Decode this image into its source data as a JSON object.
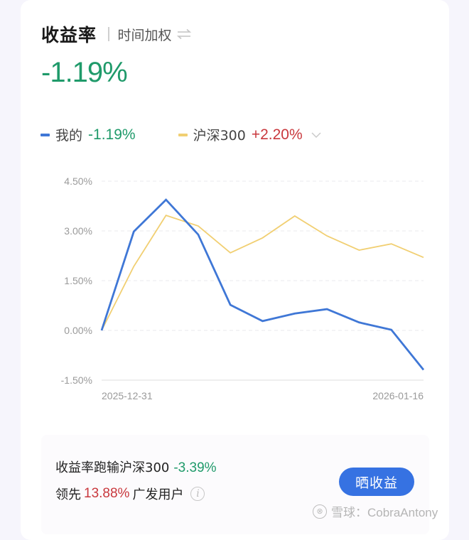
{
  "header": {
    "title": "收益率",
    "subtitle": "时间加权",
    "swap_icon": "swap-arrows-icon"
  },
  "summary": {
    "return_value": "-1.19%",
    "return_color": "#1f9a6a"
  },
  "legend": {
    "mine": {
      "label": "我的",
      "value": "-1.19%",
      "color": "#3f77d6",
      "value_color": "#1f9a6a"
    },
    "benchmark": {
      "label": "沪深300",
      "value": "+2.20%",
      "color": "#f1cf72",
      "value_color": "#c9383d"
    },
    "dropdown_icon": "chevron-down-icon"
  },
  "chart_data": {
    "type": "line",
    "title": "",
    "xlabel": "",
    "ylabel": "",
    "x_tick_labels": [
      "2025-12-31",
      "2026-01-16"
    ],
    "y_tick_labels": [
      "4.50%",
      "3.00%",
      "1.50%",
      "0.00%",
      "-1.50%"
    ],
    "y_ticks": [
      4.5,
      3.0,
      1.5,
      0.0,
      -1.5
    ],
    "ylim": [
      -1.5,
      4.5
    ],
    "grid": "horizontal dashed",
    "legend_position": "top",
    "x": [
      0,
      1,
      2,
      3,
      4,
      5,
      6,
      7,
      8,
      9,
      10
    ],
    "series": [
      {
        "name": "我的",
        "color": "#3f77d6",
        "values": [
          0.0,
          2.98,
          3.94,
          2.89,
          0.77,
          0.28,
          0.51,
          0.64,
          0.24,
          0.02,
          -1.19
        ]
      },
      {
        "name": "沪深300",
        "color": "#f1cf72",
        "values": [
          0.0,
          1.93,
          3.47,
          3.15,
          2.34,
          2.79,
          3.45,
          2.85,
          2.42,
          2.61,
          2.2
        ]
      }
    ]
  },
  "footer": {
    "compare_text": "收益率跑输沪深300",
    "compare_value": "-3.39%",
    "lead_prefix": "领先",
    "lead_value": "13.88%",
    "lead_suffix": "广发用户",
    "info_icon": "info-icon",
    "info_glyph": "i",
    "share_button": "晒收益",
    "watermark": "雪球：CobraAntony"
  }
}
